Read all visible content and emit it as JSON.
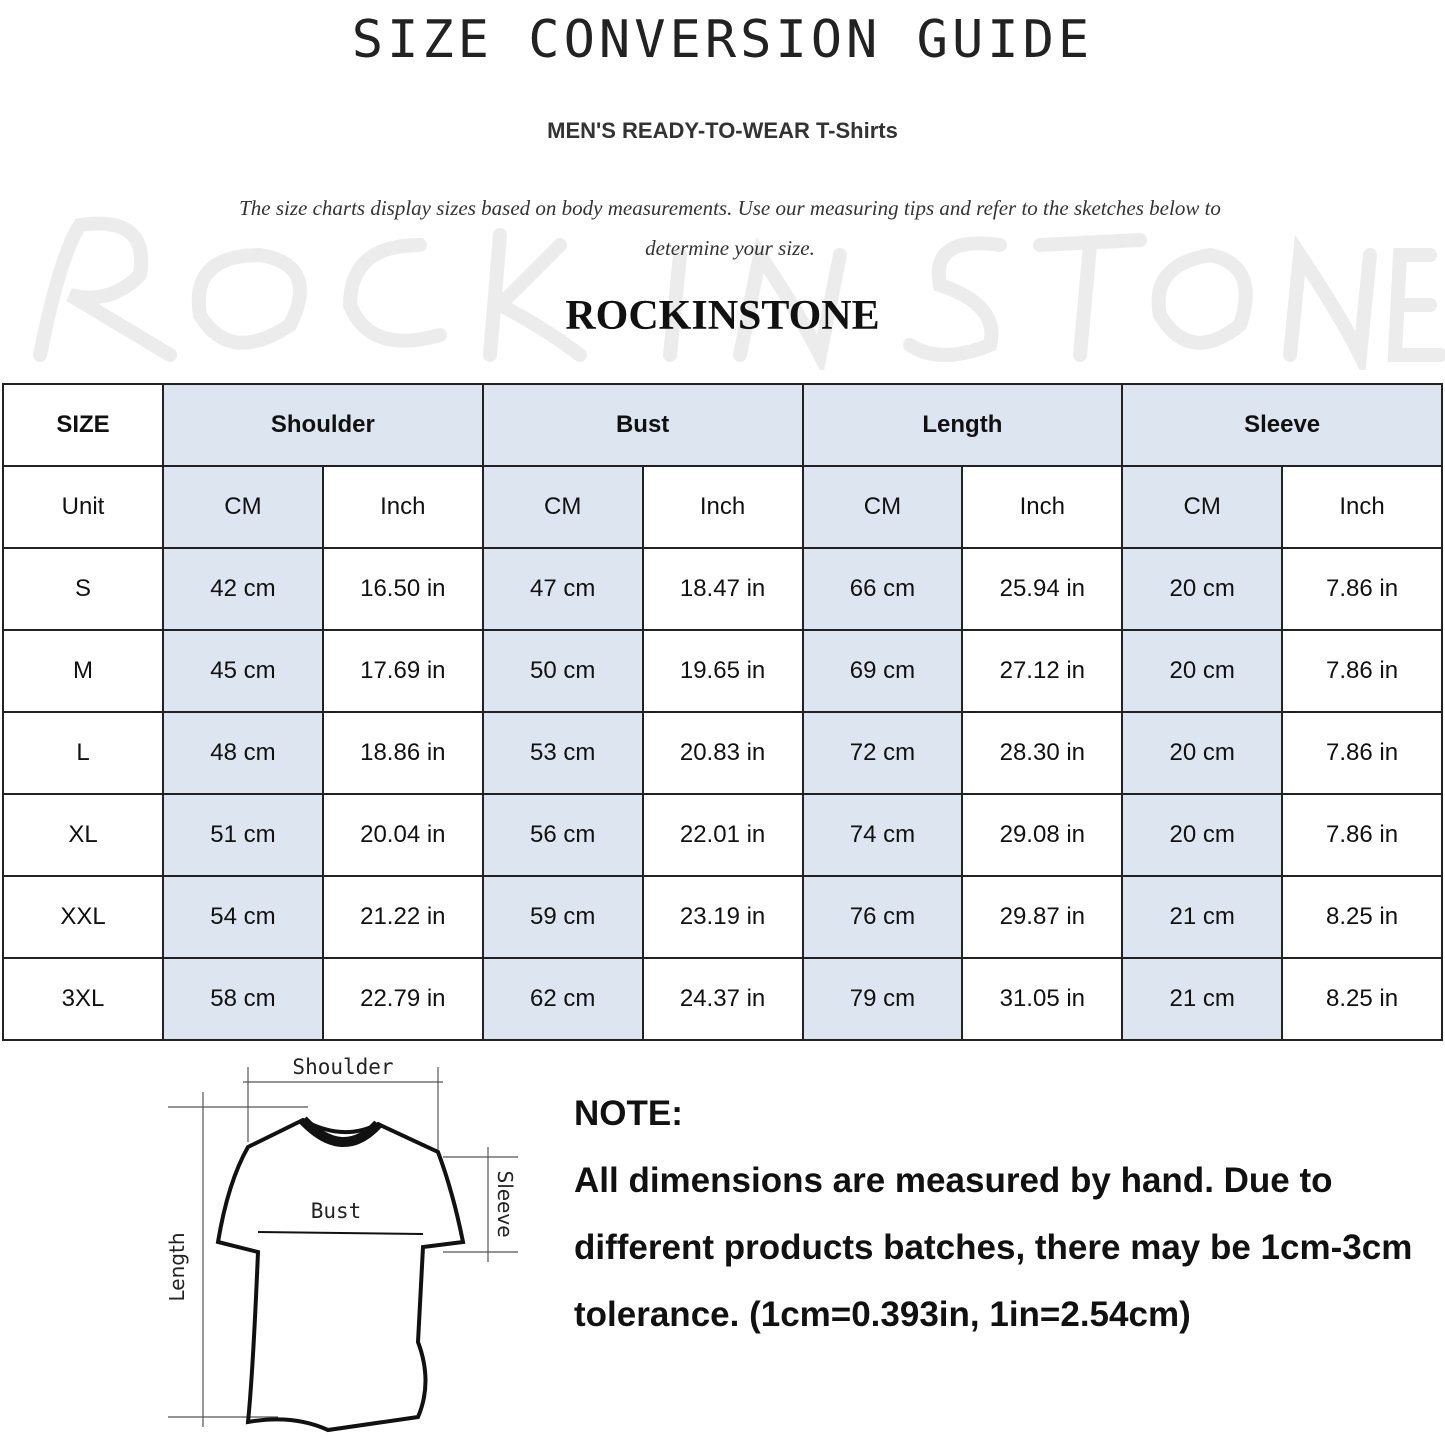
{
  "title": "SIZE CONVERSION GUIDE",
  "subtitle": "MEN'S READY-TO-WEAR T-Shirts",
  "description": "The size charts display sizes based on body measurements. Use our measuring tips and refer to the sketches below to determine your size.",
  "watermark": "ROCK IN STONE",
  "brand": "ROCKINSTONE",
  "colors": {
    "header_fill": "#dde6f0",
    "border": "#222222"
  },
  "table": {
    "size_label": "SIZE",
    "groups": [
      "Shoulder",
      "Bust",
      "Length",
      "Sleeve"
    ],
    "unit_label": "Unit",
    "units": [
      "CM",
      "Inch",
      "CM",
      "Inch",
      "CM",
      "Inch",
      "CM",
      "Inch"
    ],
    "rows": [
      {
        "size": "S",
        "values": [
          "42 cm",
          "16.50 in",
          "47 cm",
          "18.47 in",
          "66 cm",
          "25.94 in",
          "20 cm",
          "7.86 in"
        ]
      },
      {
        "size": "M",
        "values": [
          "45 cm",
          "17.69 in",
          "50 cm",
          "19.65 in",
          "69 cm",
          "27.12 in",
          "20 cm",
          "7.86 in"
        ]
      },
      {
        "size": "L",
        "values": [
          "48 cm",
          "18.86 in",
          "53 cm",
          "20.83 in",
          "72 cm",
          "28.30 in",
          "20 cm",
          "7.86 in"
        ]
      },
      {
        "size": "XL",
        "values": [
          "51 cm",
          "20.04 in",
          "56 cm",
          "22.01 in",
          "74 cm",
          "29.08 in",
          "20 cm",
          "7.86 in"
        ]
      },
      {
        "size": "XXL",
        "values": [
          "54 cm",
          "21.22 in",
          "59 cm",
          "23.19 in",
          "76 cm",
          "29.87 in",
          "21 cm",
          "8.25 in"
        ]
      },
      {
        "size": "3XL",
        "values": [
          "58 cm",
          "22.79 in",
          "62 cm",
          "24.37 in",
          "79 cm",
          "31.05 in",
          "21 cm",
          "8.25 in"
        ]
      }
    ]
  },
  "diagram": {
    "shoulder": "Shoulder",
    "bust": "Bust",
    "length": "Length",
    "sleeve": "Sleeve"
  },
  "note": {
    "heading": "NOTE:",
    "body": "All dimensions are measured by hand. Due to different products batches, there may be 1cm-3cm tolerance. (1cm=0.393in, 1in=2.54cm)"
  }
}
